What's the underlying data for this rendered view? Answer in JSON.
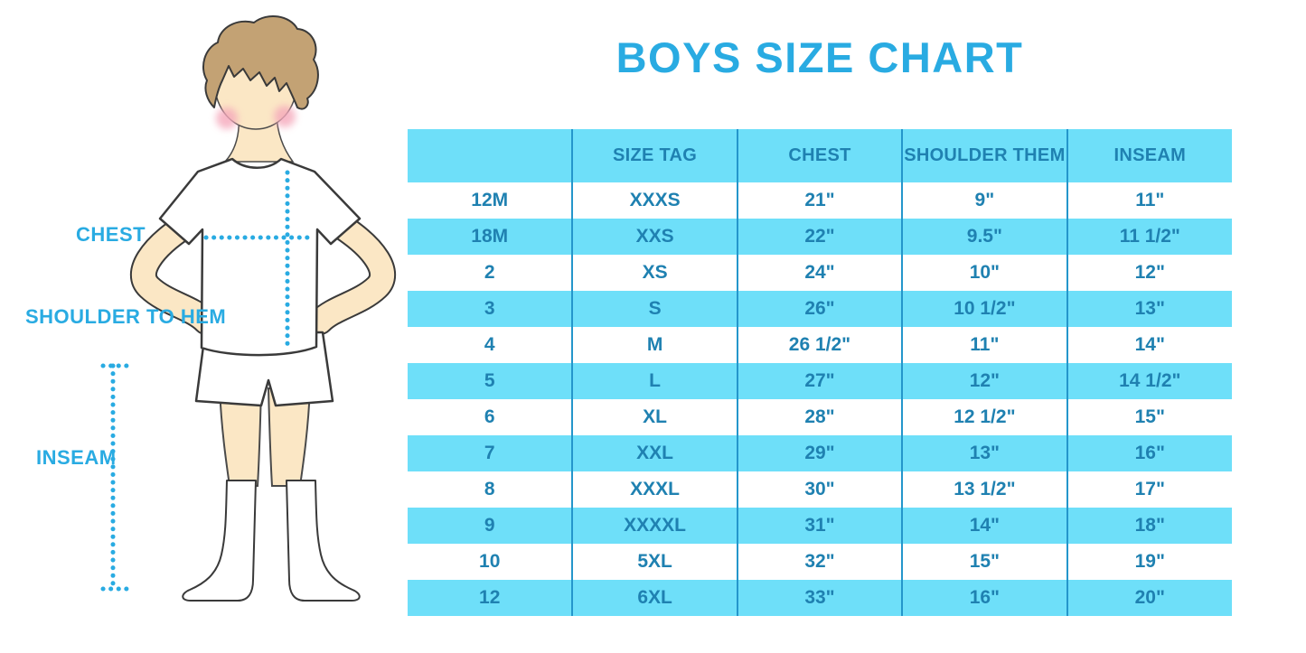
{
  "title": "BOYS SIZE CHART",
  "figure": {
    "labels": {
      "chest": "CHEST",
      "shoulder_to_hem": "SHOULDER TO HEM",
      "inseam": "INSEAM"
    }
  },
  "table": {
    "headers": [
      "",
      "SIZE TAG",
      "CHEST",
      "SHOULDER THEM",
      "INSEAM"
    ],
    "rows": [
      [
        "12M",
        "XXXS",
        "21\"",
        "9\"",
        "11\""
      ],
      [
        "18M",
        "XXS",
        "22\"",
        "9.5\"",
        "11 1/2\""
      ],
      [
        "2",
        "XS",
        "24\"",
        "10\"",
        "12\""
      ],
      [
        "3",
        "S",
        "26\"",
        "10 1/2\"",
        "13\""
      ],
      [
        "4",
        "M",
        "26 1/2\"",
        "11\"",
        "14\""
      ],
      [
        "5",
        "L",
        "27\"",
        "12\"",
        "14 1/2\""
      ],
      [
        "6",
        "XL",
        "28\"",
        "12 1/2\"",
        "15\""
      ],
      [
        "7",
        "XXL",
        "29\"",
        "13\"",
        "16\""
      ],
      [
        "8",
        "XXXL",
        "30\"",
        "13 1/2\"",
        "17\""
      ],
      [
        "9",
        "XXXXL",
        "31\"",
        "14\"",
        "18\""
      ],
      [
        "10",
        "5XL",
        "32\"",
        "15\"",
        "19\""
      ],
      [
        "12",
        "6XL",
        "33\"",
        "16\"",
        "20\""
      ]
    ]
  },
  "colors": {
    "accent_blue": "#29ABE2",
    "row_blue": "#6EDFF9",
    "table_text": "#1F81B1",
    "divider_blue": "#2496CB"
  },
  "chart_data": {
    "type": "table",
    "title": "BOYS SIZE CHART",
    "columns": [
      "",
      "SIZE TAG",
      "CHEST",
      "SHOULDER THEM",
      "INSEAM"
    ],
    "rows": [
      [
        "12M",
        "XXXS",
        "21\"",
        "9\"",
        "11\""
      ],
      [
        "18M",
        "XXS",
        "22\"",
        "9.5\"",
        "11 1/2\""
      ],
      [
        "2",
        "XS",
        "24\"",
        "10\"",
        "12\""
      ],
      [
        "3",
        "S",
        "26\"",
        "10 1/2\"",
        "13\""
      ],
      [
        "4",
        "M",
        "26 1/2\"",
        "11\"",
        "14\""
      ],
      [
        "5",
        "L",
        "27\"",
        "12\"",
        "14 1/2\""
      ],
      [
        "6",
        "XL",
        "28\"",
        "12 1/2\"",
        "15\""
      ],
      [
        "7",
        "XXL",
        "29\"",
        "13\"",
        "16\""
      ],
      [
        "8",
        "XXXL",
        "30\"",
        "13 1/2\"",
        "17\""
      ],
      [
        "9",
        "XXXXL",
        "31\"",
        "14\"",
        "18\""
      ],
      [
        "10",
        "5XL",
        "32\"",
        "15\"",
        "19\""
      ],
      [
        "12",
        "6XL",
        "33\"",
        "16\"",
        "20\""
      ]
    ],
    "annotations": [
      "CHEST",
      "SHOULDER TO HEM",
      "INSEAM"
    ],
    "layout_hints": {
      "alternating_row_colors": [
        "#FFFFFF",
        "#6EDFF9"
      ],
      "header_background": "#6EDFF9",
      "vertical_dividers": true,
      "horizontal_gridlines": false
    }
  }
}
